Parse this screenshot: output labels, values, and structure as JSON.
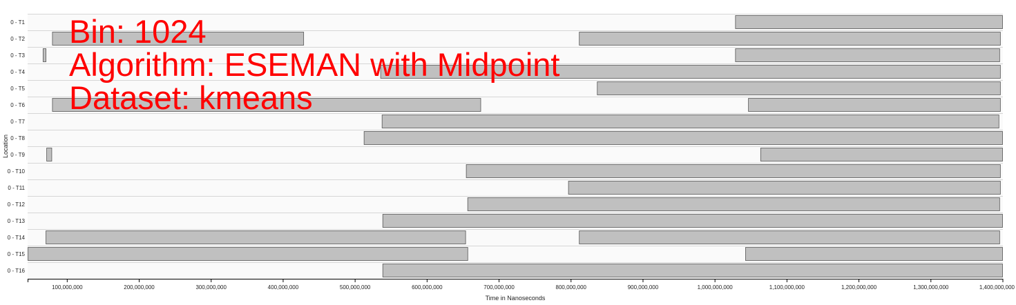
{
  "overlay": {
    "line1": "Bin: 1024",
    "line2": "Algorithm: ESEMAN with Midpoint",
    "line3": "Dataset: kmeans"
  },
  "chart_data": {
    "type": "gantt",
    "xlabel": "Time in Nanoseconds",
    "ylabel": "Location",
    "xlim": [
      45000000,
      1400000000
    ],
    "x_ticks": [
      100000000,
      200000000,
      300000000,
      400000000,
      500000000,
      600000000,
      700000000,
      800000000,
      900000000,
      1000000000,
      1100000000,
      1200000000,
      1300000000,
      1400000000
    ],
    "x_tick_labels": [
      "100,000,000",
      "200,000,000",
      "300,000,000",
      "400,000,000",
      "500,000,000",
      "600,000,000",
      "700,000,000",
      "800,000,000",
      "900,000,000",
      "1,000,000,000",
      "1,100,000,000",
      "1,200,000,000",
      "1,300,000,000",
      "1,400,000,000"
    ],
    "bar_color": "#c0c0c0",
    "rows": [
      {
        "label": "0 - T1",
        "intervals": [
          [
            1028000000,
            1400000000
          ]
        ]
      },
      {
        "label": "0 - T2",
        "intervals": [
          [
            79000000,
            429000000
          ],
          [
            811000000,
            1397000000
          ]
        ]
      },
      {
        "label": "0 - T3",
        "intervals": [
          [
            66000000,
            71000000
          ],
          [
            1028000000,
            1396000000
          ]
        ]
      },
      {
        "label": "0 - T4",
        "intervals": [
          [
            535000000,
            1397000000
          ]
        ]
      },
      {
        "label": "0 - T5",
        "intervals": [
          [
            836000000,
            1397000000
          ]
        ]
      },
      {
        "label": "0 - T6",
        "intervals": [
          [
            79000000,
            675000000
          ],
          [
            1046000000,
            1397000000
          ]
        ]
      },
      {
        "label": "0 - T7",
        "intervals": [
          [
            537000000,
            1395000000
          ]
        ]
      },
      {
        "label": "0 - T8",
        "intervals": [
          [
            512000000,
            1400000000
          ]
        ]
      },
      {
        "label": "0 - T9",
        "intervals": [
          [
            71000000,
            79000000
          ],
          [
            1063000000,
            1400000000
          ]
        ]
      },
      {
        "label": "0 - T10",
        "intervals": [
          [
            654000000,
            1397000000
          ]
        ]
      },
      {
        "label": "0 - T11",
        "intervals": [
          [
            796000000,
            1397000000
          ]
        ]
      },
      {
        "label": "0 - T12",
        "intervals": [
          [
            656000000,
            1396000000
          ]
        ]
      },
      {
        "label": "0 - T13",
        "intervals": [
          [
            538000000,
            1400000000
          ]
        ]
      },
      {
        "label": "0 - T14",
        "intervals": [
          [
            70000000,
            654000000
          ],
          [
            811000000,
            1396000000
          ]
        ]
      },
      {
        "label": "0 - T15",
        "intervals": [
          [
            45000000,
            657000000
          ],
          [
            1042000000,
            1400000000
          ]
        ]
      },
      {
        "label": "0 - T16",
        "intervals": [
          [
            538000000,
            1400000000
          ]
        ]
      }
    ]
  }
}
